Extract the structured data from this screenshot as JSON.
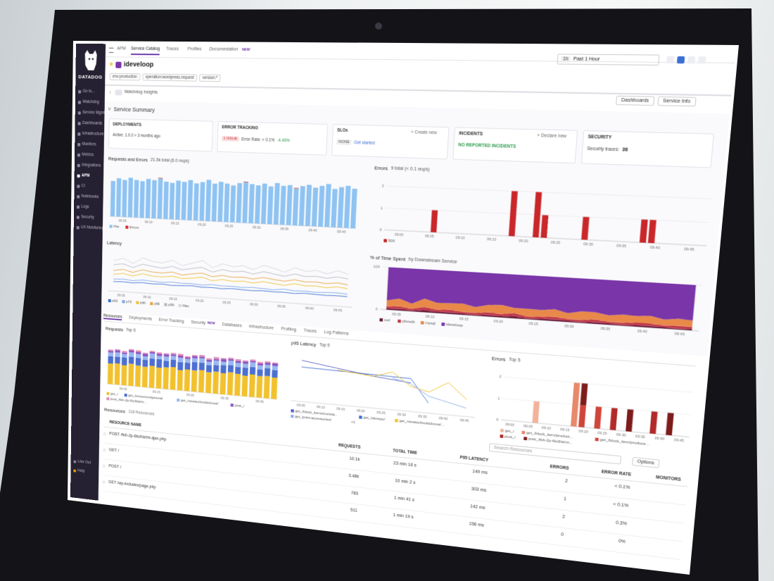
{
  "sidebar": {
    "brand": "DATADOG",
    "items": [
      "Go to...",
      "Watchdog",
      "Service Mgmt",
      "Dashboards",
      "Infrastructure",
      "Monitors",
      "Metrics",
      "Integrations",
      "APM",
      "CI",
      "Notebooks",
      "Logs",
      "Security",
      "UX Monitoring"
    ],
    "footer": [
      "Live Out",
      "Help"
    ]
  },
  "topnav": {
    "tabs": [
      "APM",
      "Service Catalog",
      "Traces",
      "Profiles",
      "Documentation"
    ],
    "badge": "NEW"
  },
  "service": {
    "name": "ideveloop",
    "filters": [
      "env:production",
      "operation:wordpress.request",
      "version:*"
    ],
    "time_shortcut": "1h",
    "time_range": "Past 1 Hour"
  },
  "toolbar": {
    "insights": "Watchdog Insights",
    "buttons": [
      "Dashboards",
      "Service Info"
    ]
  },
  "summary": {
    "title": "Service Summary",
    "cards": [
      {
        "title": "DEPLOYMENTS",
        "lines": [
          "Active: 1.0.0 > 3 months ago"
        ]
      },
      {
        "title": "ERROR TRACKING",
        "badge": "1 ISSUE",
        "lines": [
          "Error Rate: < 0.1%",
          "-4.46%"
        ]
      },
      {
        "title": "SLOs",
        "action": "+ Create new",
        "badge": "NONE",
        "lines": [
          "Get started"
        ]
      },
      {
        "title": "INCIDENTS",
        "action": "+ Declare new",
        "lines": [
          "NO REPORTED INCIDENTS"
        ]
      },
      {
        "title": "SECURITY",
        "lines": [
          "Security traces:"
        ],
        "value": 36
      }
    ]
  },
  "charts": [
    {
      "type": "bar",
      "stacked": true,
      "title": "Requests and Errors",
      "subtitle": "21.5k total (6.0 req/s)",
      "ylim": [
        0,
        100
      ],
      "xlabels": [
        "09:05",
        "09:10",
        "09:15",
        "09:20",
        "09:25",
        "09:30",
        "09:35",
        "09:40",
        "09:45"
      ],
      "series": [
        {
          "name": "Hits",
          "color": "#8ec3f2",
          "values": [
            72,
            78,
            75,
            80,
            76,
            74,
            79,
            77,
            81,
            75,
            73,
            78,
            76,
            80,
            74,
            77,
            82,
            75,
            79,
            76,
            73,
            78,
            80,
            77,
            75,
            79,
            74,
            81,
            76,
            78,
            72,
            77,
            80,
            75,
            79,
            83,
            74,
            78,
            81,
            76
          ]
        },
        {
          "name": "Errors",
          "color": "#d0312d",
          "values": [
            0,
            0,
            0,
            0,
            0,
            0,
            0,
            0,
            1,
            0,
            0,
            0,
            0,
            0,
            0,
            0,
            0,
            0,
            0,
            0,
            0,
            0,
            1,
            0,
            0,
            0,
            0,
            0,
            0,
            0,
            1,
            0,
            0,
            0,
            0,
            0,
            0,
            0,
            0,
            0
          ]
        }
      ]
    },
    {
      "type": "bar",
      "title": "Errors",
      "subtitle": "9 total (< 0.1 req/s)",
      "ylim": [
        0,
        2.4
      ],
      "yticks": [
        0,
        1,
        2
      ],
      "xlabels": [
        "09:00",
        "09:05",
        "09:10",
        "09:15",
        "09:20",
        "09:25",
        "09:30",
        "09:35",
        "09:40",
        "09:45"
      ],
      "series": [
        {
          "name": "500",
          "color": "#c9272a",
          "values": [
            0,
            0,
            0,
            0,
            0,
            0,
            1,
            0,
            0,
            0,
            0,
            0,
            0,
            0,
            0,
            0,
            2,
            0,
            0,
            2,
            1,
            0,
            0,
            0,
            0,
            1,
            0,
            0,
            0,
            0,
            0,
            0,
            1,
            1,
            0,
            0,
            0,
            0,
            0,
            0
          ]
        }
      ]
    },
    {
      "type": "line",
      "title": "Latency",
      "ylim": [
        0,
        500
      ],
      "xlabels": [
        "09:05",
        "09:10",
        "09:15",
        "09:20",
        "09:25",
        "09:30",
        "09:35",
        "09:40",
        "09:45"
      ],
      "series": [
        {
          "name": "p50",
          "color": "#3b6fd4",
          "values": [
            120,
            125,
            118,
            130,
            122,
            128,
            119,
            124,
            131,
            121,
            126,
            118,
            129,
            123,
            120,
            127,
            122,
            125,
            119,
            130,
            124,
            121,
            126,
            123
          ]
        },
        {
          "name": "p75",
          "color": "#7da6e8",
          "values": [
            150,
            158,
            147,
            162,
            155,
            149,
            160,
            153,
            157,
            148,
            161,
            152,
            156,
            150,
            159,
            154,
            147,
            163,
            151,
            157,
            149,
            155,
            160,
            152
          ]
        },
        {
          "name": "p90",
          "color": "#f2c12e",
          "values": [
            210,
            230,
            205,
            240,
            220,
            215,
            235,
            212,
            225,
            245,
            208,
            232,
            218,
            228,
            214,
            238,
            222,
            210,
            236,
            219,
            226,
            213,
            231,
            217
          ]
        },
        {
          "name": "p95",
          "color": "#e8a33c",
          "values": [
            260,
            280,
            250,
            290,
            270,
            265,
            285,
            255,
            278,
            295,
            258,
            282,
            268,
            276,
            262,
            288,
            271,
            259,
            284,
            266,
            274,
            261,
            279,
            264
          ]
        },
        {
          "name": "p99",
          "color": "#b9b9c4",
          "values": [
            330,
            350,
            310,
            360,
            340,
            325,
            355,
            320,
            345,
            365,
            315,
            352,
            335,
            348,
            322,
            358,
            338,
            318,
            354,
            330,
            342,
            326,
            349,
            333
          ]
        },
        {
          "name": "Max",
          "color": "#d8d8de",
          "values": [
            380,
            420,
            360,
            440,
            400,
            390,
            430,
            370,
            410,
            450,
            365,
            425,
            395,
            415,
            375,
            435,
            405,
            368,
            428,
            392,
            412,
            378,
            422,
            388
          ]
        }
      ]
    },
    {
      "type": "area",
      "title": "% of Time Spent",
      "subtitle": "by Downstream Service",
      "ylim": [
        0,
        100
      ],
      "yticks": [
        0,
        100
      ],
      "xlabels": [
        "09:05",
        "09:10",
        "09:15",
        "09:20",
        "09:25",
        "09:30",
        "09:35",
        "09:40",
        "09:45"
      ],
      "series": [
        {
          "name": "curl",
          "color": "#6b1f3f",
          "values": [
            3,
            4,
            2,
            5,
            3,
            4,
            3,
            2,
            4,
            3,
            5,
            2,
            3,
            4,
            3,
            2,
            4,
            3,
            2,
            3,
            4,
            3,
            2,
            3
          ]
        },
        {
          "name": "pfsmdb",
          "color": "#c23b4b",
          "values": [
            5,
            6,
            4,
            7,
            5,
            6,
            4,
            5,
            6,
            5,
            7,
            4,
            5,
            6,
            4,
            5,
            6,
            4,
            5,
            6,
            5,
            4,
            6,
            5
          ]
        },
        {
          "name": "mysql",
          "color": "#e8894a",
          "values": [
            14,
            18,
            12,
            20,
            16,
            15,
            19,
            13,
            17,
            21,
            12,
            18,
            15,
            17,
            13,
            19,
            16,
            14,
            18,
            15,
            17,
            13,
            16,
            14
          ]
        },
        {
          "name": "ideveloop",
          "color": "#7a35a8",
          "values": [
            78,
            72,
            82,
            68,
            76,
            75,
            74,
            80,
            73,
            71,
            76,
            76,
            77,
            73,
            80,
            74,
            74,
            79,
            75,
            76,
            74,
            80,
            76,
            78
          ]
        }
      ]
    },
    {
      "type": "bar",
      "stacked": true,
      "title": "Requests",
      "subtitle": "Top 5",
      "ylim": [
        0,
        160
      ],
      "xlabels": [
        "09:05",
        "09:15",
        "09:25",
        "09:35",
        "09:45"
      ],
      "series": [
        {
          "name": "get_/",
          "color": "#f2c12e",
          "values": [
            70,
            72,
            68,
            75,
            71,
            69,
            74,
            70,
            73,
            76,
            68,
            72,
            71,
            74,
            69,
            73,
            70,
            75,
            72,
            68,
            74,
            71,
            73,
            70
          ]
        },
        {
          "name": "get_/resources/general",
          "color": "#4c6fd1",
          "values": [
            25,
            22,
            27,
            24,
            26,
            23,
            25,
            28,
            22,
            24,
            26,
            23,
            27,
            25,
            24,
            22,
            26,
            24,
            23,
            27,
            25,
            22,
            26,
            24
          ]
        },
        {
          "name": "get_/newtechnokicknow/",
          "color": "#9ab8f0",
          "values": [
            12,
            15,
            11,
            14,
            13,
            12,
            16,
            11,
            14,
            13,
            15,
            12,
            13,
            14,
            11,
            15,
            12,
            14,
            13,
            12,
            15,
            13,
            11,
            14
          ]
        },
        {
          "name": "post_/",
          "color": "#8a55c4",
          "values": [
            6,
            8,
            5,
            7,
            6,
            9,
            5,
            7,
            8,
            6,
            7,
            5,
            8,
            6,
            7,
            5,
            9,
            6,
            7,
            8,
            5,
            6,
            7,
            8
          ]
        },
        {
          "name": "post_/feb-2p-6tu9/a/mi...",
          "color": "#e58bb4",
          "values": [
            4,
            3,
            5,
            4,
            6,
            3,
            4,
            5,
            3,
            4,
            6,
            4,
            3,
            5,
            4,
            6,
            3,
            4,
            5,
            3,
            4,
            5,
            4,
            3
          ]
        }
      ]
    },
    {
      "type": "line",
      "title": "p95 Latency",
      "subtitle": "Top 5",
      "ylim": [
        0,
        600
      ],
      "more": "+1",
      "xlabels": [
        "09:05",
        "09:10",
        "09:15",
        "09:20",
        "09:25",
        "09:30",
        "09:35",
        "09:40",
        "09:45"
      ],
      "series": [
        {
          "name": "get_/block_items/contrat...",
          "color": "#5b5fc7",
          "values": [
            500,
            470,
            440,
            410,
            380,
            360,
            340,
            null,
            null,
            null
          ]
        },
        {
          "name": "get_/dsnepo/",
          "color": "#3b6fd4",
          "values": [
            420,
            415,
            410,
            405,
            400,
            395,
            390,
            120,
            null,
            null
          ]
        },
        {
          "name": "get_/newtechnokicknow/...",
          "color": "#f2c12e",
          "values": [
            null,
            null,
            420,
            400,
            380,
            450,
            300,
            250,
            380,
            200
          ]
        },
        {
          "name": "get_/print-accessories/",
          "color": "#8fb4ea",
          "values": [
            null,
            null,
            null,
            null,
            null,
            380,
            330,
            200,
            150,
            100
          ]
        }
      ]
    },
    {
      "type": "bar",
      "stacked": true,
      "title": "Errors",
      "subtitle": "Top 5",
      "ylim": [
        0,
        2.4
      ],
      "yticks": [
        0,
        1,
        2
      ],
      "xlabels": [
        "09:00",
        "09:05",
        "09:10",
        "09:15",
        "09:20",
        "09:25",
        "09:30",
        "09:35",
        "09:40",
        "09:45"
      ],
      "series": [
        {
          "name": "get_/",
          "color": "#f2b39a",
          "values": [
            0,
            0,
            0,
            0,
            1,
            0,
            0,
            0,
            0,
            0,
            0,
            0,
            0,
            0,
            0,
            0,
            0,
            0,
            0,
            0,
            0,
            0,
            0,
            0
          ]
        },
        {
          "name": "get_/block_item/product...",
          "color": "#e8896a",
          "values": [
            0,
            0,
            0,
            0,
            0,
            0,
            0,
            0,
            0,
            2,
            0,
            0,
            0,
            0,
            0,
            0,
            0,
            0,
            0,
            0,
            0,
            0,
            0,
            0
          ]
        },
        {
          "name": "get_/block_item/produce...",
          "color": "#d0453a",
          "values": [
            0,
            0,
            0,
            0,
            0,
            0,
            0,
            0,
            0,
            0,
            1,
            0,
            1,
            0,
            0,
            0,
            0,
            0,
            0,
            0,
            0,
            0,
            0,
            0
          ]
        },
        {
          "name": "post_/",
          "color": "#b22a2a",
          "values": [
            0,
            0,
            0,
            0,
            0,
            0,
            0,
            0,
            0,
            0,
            0,
            0,
            0,
            0,
            1,
            0,
            0,
            0,
            0,
            1,
            0,
            0,
            0,
            0
          ]
        },
        {
          "name": "post_/feb-2p-6tu9/a/mi...",
          "color": "#7e1b1b",
          "values": [
            0,
            0,
            0,
            0,
            0,
            0,
            0,
            0,
            0,
            0,
            1,
            0,
            0,
            0,
            0,
            0,
            1,
            0,
            0,
            0,
            0,
            1,
            0,
            0
          ]
        }
      ]
    }
  ],
  "tabs": [
    "Resources",
    "Deployments",
    "Error Tracking",
    "Security",
    "Databases",
    "Infrastructure",
    "Profiling",
    "Traces",
    "Log Patterns"
  ],
  "tab_badge": "NEW",
  "resources": {
    "title": "Resources",
    "subtitle": "118 Resources",
    "search": "Search Resources",
    "options": "Options",
    "columns": [
      "RESOURCE NAME",
      "REQUESTS",
      "TOTAL TIME",
      "P95 LATENCY",
      "ERRORS",
      "ERROR RATE",
      "MONITORS"
    ],
    "rows": [
      [
        "POST /feb-2p-6tu9/a/mi-ajax.php",
        "10.1k",
        "23 min 16 s",
        "149 ms",
        2,
        "< 0.1%"
      ],
      [
        "GET /",
        "3.48k",
        "10 min 2 s",
        "303 ms",
        1,
        "< 0.1%"
      ],
      [
        "POST /",
        "783",
        "1 min 41 s",
        "142 ms",
        2,
        "0.3%"
      ],
      [
        "GET /wp-includes/page.php",
        "511",
        "1 min 19 s",
        "156 ms",
        0,
        "0%"
      ]
    ]
  }
}
